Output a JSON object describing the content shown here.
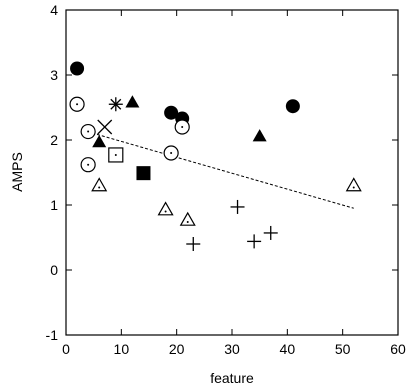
{
  "chart_data": {
    "type": "scatter",
    "title": "",
    "xlabel": "feature",
    "ylabel": "AMPS",
    "xlim": [
      0,
      60
    ],
    "ylim": [
      -1,
      4
    ],
    "xticks": [
      0,
      10,
      20,
      30,
      40,
      50,
      60
    ],
    "yticks": [
      -1,
      0,
      1,
      2,
      3,
      4
    ],
    "grid": false,
    "legend": "none",
    "series": [
      {
        "marker": "filled-circle",
        "points": [
          [
            2,
            3.1
          ],
          [
            19,
            2.42
          ],
          [
            21,
            2.33
          ],
          [
            41,
            2.52
          ]
        ]
      },
      {
        "marker": "open-circle-dot",
        "points": [
          [
            2,
            2.55
          ],
          [
            4,
            2.13
          ],
          [
            4,
            1.62
          ],
          [
            19,
            1.8
          ],
          [
            21,
            2.2
          ]
        ]
      },
      {
        "marker": "filled-triangle",
        "points": [
          [
            6,
            1.97
          ],
          [
            12,
            2.58
          ],
          [
            35,
            2.06
          ]
        ]
      },
      {
        "marker": "open-triangle-dot",
        "points": [
          [
            6,
            1.3
          ],
          [
            18,
            0.93
          ],
          [
            22,
            0.77
          ],
          [
            52,
            1.3
          ]
        ]
      },
      {
        "marker": "asterisk",
        "points": [
          [
            9,
            2.55
          ]
        ]
      },
      {
        "marker": "x-cross",
        "points": [
          [
            7,
            2.2
          ]
        ]
      },
      {
        "marker": "open-square-dot",
        "points": [
          [
            9,
            1.77
          ]
        ]
      },
      {
        "marker": "filled-square",
        "points": [
          [
            14,
            1.49
          ]
        ]
      },
      {
        "marker": "plus",
        "points": [
          [
            23,
            0.4
          ],
          [
            31,
            0.97
          ],
          [
            34,
            0.44
          ],
          [
            37,
            0.57
          ]
        ]
      }
    ],
    "trendline": {
      "style": "dashed",
      "from": [
        3,
        2.15
      ],
      "to": [
        52,
        0.95
      ]
    }
  }
}
